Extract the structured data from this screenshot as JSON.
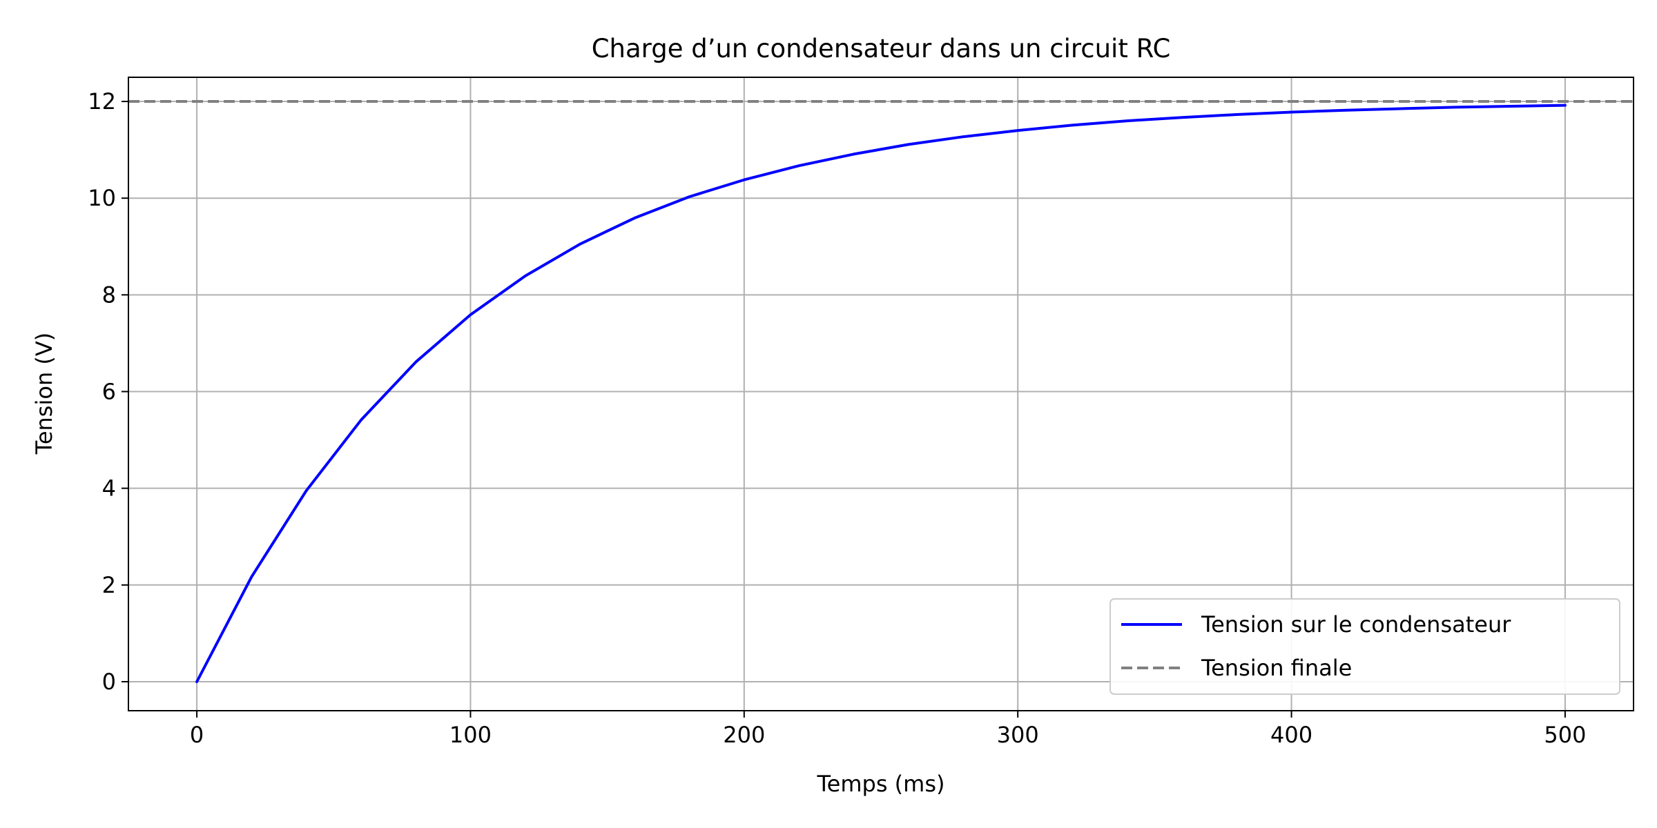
{
  "chart_data": {
    "type": "line",
    "title": "Charge d’un condensateur dans un circuit RC",
    "xlabel": "Temps (ms)",
    "ylabel": "Tension (V)",
    "xlim": [
      -25,
      525
    ],
    "ylim": [
      -0.6,
      12.5
    ],
    "xticks": [
      0,
      100,
      200,
      300,
      400,
      500
    ],
    "yticks": [
      0,
      2,
      4,
      6,
      8,
      10,
      12
    ],
    "grid": true,
    "legend_position": "lower-right",
    "series": [
      {
        "name": "Tension sur le condensateur",
        "color": "#0000ff",
        "style": "solid",
        "x": [
          0,
          20,
          40,
          60,
          80,
          100,
          120,
          140,
          160,
          180,
          200,
          220,
          240,
          260,
          280,
          300,
          320,
          340,
          360,
          380,
          400,
          420,
          440,
          460,
          480,
          500
        ],
        "y": [
          0,
          2.17,
          3.95,
          5.41,
          6.61,
          7.59,
          8.39,
          9.05,
          9.59,
          10.03,
          10.38,
          10.67,
          10.91,
          11.11,
          11.27,
          11.4,
          11.51,
          11.6,
          11.67,
          11.73,
          11.78,
          11.82,
          11.85,
          11.88,
          11.9,
          11.92
        ]
      },
      {
        "name": "Tension finale",
        "color": "#808080",
        "style": "dashed",
        "y_constant": 12
      }
    ]
  }
}
